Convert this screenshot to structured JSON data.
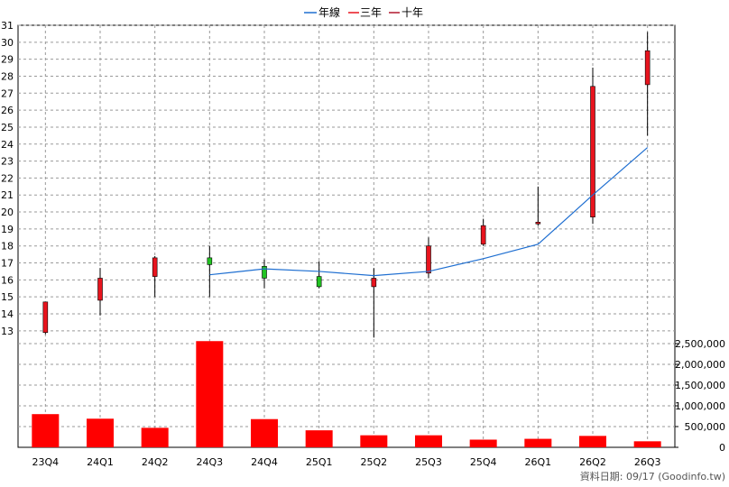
{
  "legend": {
    "items": [
      {
        "label": "年線",
        "color": "#1f6fd1"
      },
      {
        "label": "三年",
        "color": "#e8141e"
      },
      {
        "label": "十年",
        "color": "#b0182e"
      }
    ]
  },
  "footer": {
    "text": "資料日期: 09/17  (Goodinfo.tw)"
  },
  "colors": {
    "up_candle": "#e8141e",
    "down_candle": "#22c422",
    "wick": "#000000",
    "volume_bar": "#ff0000",
    "grid": "#9a9a9a",
    "line": "#1f6fd1"
  },
  "chart_data": [
    {
      "type": "candlestick",
      "categories": [
        "23Q4",
        "24Q1",
        "24Q2",
        "24Q3",
        "24Q4",
        "25Q1",
        "25Q2",
        "25Q3",
        "25Q4",
        "26Q1",
        "26Q2",
        "26Q3"
      ],
      "ylim": [
        12.3,
        31
      ],
      "ylim_comment": "",
      "yticks": [
        13,
        14,
        15,
        16,
        17,
        18,
        19,
        20,
        21,
        22,
        23,
        24,
        25,
        26,
        27,
        28,
        29,
        30,
        31
      ],
      "ohlc": [
        {
          "open": 12.9,
          "high": 14.7,
          "low": 12.8,
          "close": 14.7
        },
        {
          "open": 14.8,
          "high": 16.7,
          "low": 13.9,
          "close": 16.1
        },
        {
          "open": 16.2,
          "high": 17.4,
          "low": 15.0,
          "close": 17.3
        },
        {
          "open": 17.3,
          "high": 18.0,
          "low": 15.0,
          "close": 16.9
        },
        {
          "open": 16.8,
          "high": 17.2,
          "low": 15.5,
          "close": 16.1
        },
        {
          "open": 16.2,
          "high": 17.1,
          "low": 15.5,
          "close": 15.6
        },
        {
          "open": 15.6,
          "high": 16.7,
          "low": 12.6,
          "close": 16.1
        },
        {
          "open": 16.4,
          "high": 18.5,
          "low": 16.1,
          "close": 18.0
        },
        {
          "open": 18.1,
          "high": 19.6,
          "low": 18.0,
          "close": 19.2
        },
        {
          "open": 19.3,
          "high": 21.5,
          "low": 19.2,
          "close": 19.4
        },
        {
          "open": 19.7,
          "high": 28.5,
          "low": 19.3,
          "close": 27.4
        },
        {
          "open": 27.5,
          "high": 30.6,
          "low": 24.5,
          "close": 29.5
        }
      ],
      "series": [
        {
          "name": "年線",
          "values": [
            null,
            null,
            null,
            16.3,
            16.65,
            16.5,
            16.25,
            16.5,
            17.25,
            18.1,
            21.0,
            23.8
          ]
        }
      ]
    },
    {
      "type": "bar",
      "categories": [
        "23Q4",
        "24Q1",
        "24Q2",
        "24Q3",
        "24Q4",
        "25Q1",
        "25Q2",
        "25Q3",
        "25Q4",
        "26Q1",
        "26Q2",
        "26Q3"
      ],
      "values": [
        800000,
        690000,
        470000,
        2560000,
        680000,
        410000,
        290000,
        290000,
        185000,
        205000,
        275000,
        145000
      ],
      "ylim": [
        0,
        2500000
      ],
      "ytick_labels": [
        "0",
        "500,000",
        "1,000,000",
        "1,500,000",
        "2,000,000",
        "2,500,000"
      ]
    }
  ]
}
